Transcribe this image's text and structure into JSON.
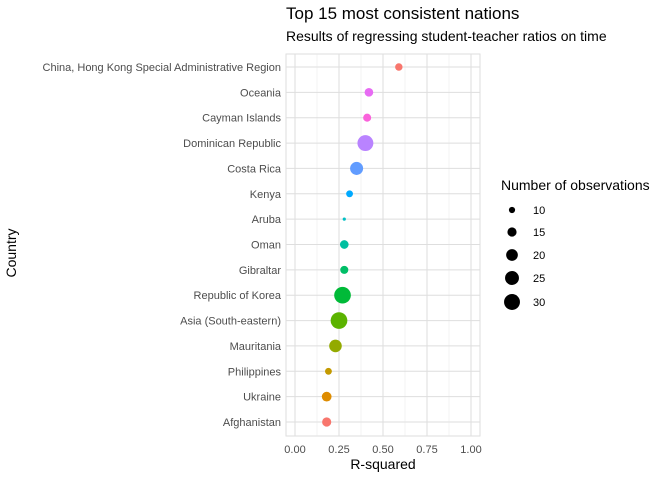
{
  "chart_data": {
    "type": "scatter",
    "title": "Top 15 most consistent nations",
    "subtitle": "Results of regressing student-teacher ratios on time",
    "xlabel": "R-squared",
    "ylabel": "Country",
    "xlim": [
      0,
      1
    ],
    "x_ticks": [
      "0.00",
      "0.25",
      "0.50",
      "0.75",
      "1.00"
    ],
    "x_tick_values": [
      0,
      0.25,
      0.5,
      0.75,
      1
    ],
    "grid": true,
    "legend": {
      "title": "Number of observations",
      "position": "right",
      "sizes": [
        10,
        15,
        20,
        25,
        30
      ],
      "labels": [
        "10",
        "15",
        "20",
        "25",
        "30"
      ]
    },
    "points": [
      {
        "country": "China, Hong Kong Special Administrative Region",
        "r_squared": 0.59,
        "observations": 12,
        "color": "#f8766d"
      },
      {
        "country": "Oceania",
        "r_squared": 0.42,
        "observations": 14,
        "color": "#e76bf3"
      },
      {
        "country": "Cayman Islands",
        "r_squared": 0.41,
        "observations": 13,
        "color": "#fa62db"
      },
      {
        "country": "Dominican Republic",
        "r_squared": 0.4,
        "observations": 30,
        "color": "#b983ff"
      },
      {
        "country": "Costa Rica",
        "r_squared": 0.35,
        "observations": 23,
        "color": "#619cff"
      },
      {
        "country": "Kenya",
        "r_squared": 0.31,
        "observations": 11,
        "color": "#00a9ff"
      },
      {
        "country": "Aruba",
        "r_squared": 0.28,
        "observations": 6,
        "color": "#00bfc4"
      },
      {
        "country": "Oman",
        "r_squared": 0.28,
        "observations": 14,
        "color": "#00bfa0"
      },
      {
        "country": "Gibraltar",
        "r_squared": 0.28,
        "observations": 13,
        "color": "#00be67"
      },
      {
        "country": "Republic of Korea",
        "r_squared": 0.27,
        "observations": 32,
        "color": "#00ba38"
      },
      {
        "country": "Asia (South-eastern)",
        "r_squared": 0.25,
        "observations": 32,
        "color": "#5bb300"
      },
      {
        "country": "Mauritania",
        "r_squared": 0.23,
        "observations": 22,
        "color": "#93aa00"
      },
      {
        "country": "Philippines",
        "r_squared": 0.19,
        "observations": 11,
        "color": "#c49a00"
      },
      {
        "country": "Ukraine",
        "r_squared": 0.18,
        "observations": 16,
        "color": "#de8c00"
      },
      {
        "country": "Afghanistan",
        "r_squared": 0.18,
        "observations": 15,
        "color": "#f8766d"
      }
    ]
  }
}
